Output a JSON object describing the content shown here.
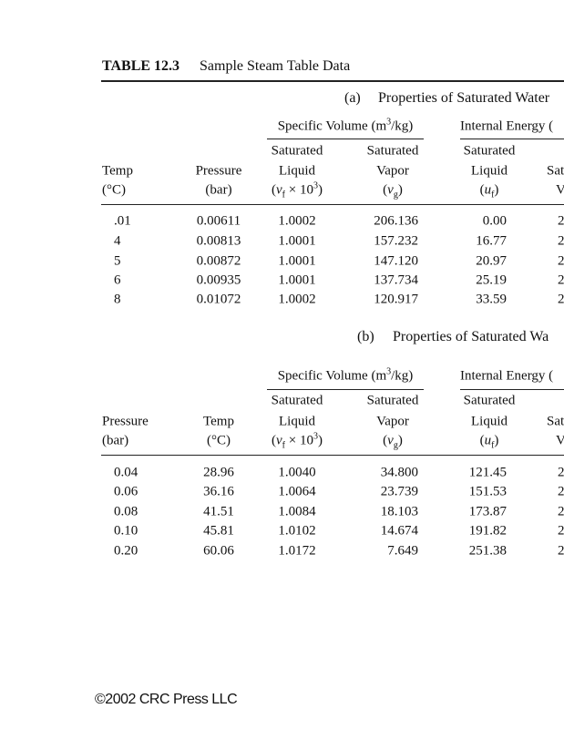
{
  "header": {
    "label": "TABLE 12.3",
    "title": "Sample Steam Table Data"
  },
  "parts": [
    {
      "label": "(a)",
      "title": "Properties of Saturated Water",
      "groups": [
        {
          "text": [
            {
              "text": "Specific Volume (m"
            },
            {
              "text": "3",
              "style": "sup"
            },
            {
              "text": "/kg)"
            }
          ],
          "from": 2,
          "to": 3
        },
        {
          "text": [
            {
              "text": "Internal Energy ("
            }
          ],
          "from": 4,
          "to": 5
        }
      ],
      "columns": [
        [
          "Temp",
          "(°C)"
        ],
        [
          "Pressure",
          "(bar)"
        ],
        [
          "Saturated",
          "Liquid",
          [
            {
              "text": "("
            },
            {
              "text": "v",
              "style": "i"
            },
            {
              "text": "f",
              "style": "sub"
            },
            {
              "text": " × 10"
            },
            {
              "text": "3",
              "style": "sup"
            },
            {
              "text": ")"
            }
          ]
        ],
        [
          "Saturated",
          "Vapor",
          [
            {
              "text": "("
            },
            {
              "text": "v",
              "style": "i"
            },
            {
              "text": "g",
              "style": "sub"
            },
            {
              "text": ")"
            }
          ]
        ],
        [
          "Saturated",
          "Liquid",
          [
            {
              "text": "("
            },
            {
              "text": "u",
              "style": "i"
            },
            {
              "text": "f",
              "style": "sub"
            },
            {
              "text": ")"
            }
          ]
        ],
        [
          "Sat",
          "V"
        ]
      ],
      "rows": [
        [
          ".01",
          "0.00611",
          "1.0002",
          "206.136",
          "0.00",
          "2"
        ],
        [
          "4",
          "0.00813",
          "1.0001",
          "157.232",
          "16.77",
          "2"
        ],
        [
          "5",
          "0.00872",
          "1.0001",
          "147.120",
          "20.97",
          "2"
        ],
        [
          "6",
          "0.00935",
          "1.0001",
          "137.734",
          "25.19",
          "2"
        ],
        [
          "8",
          "0.01072",
          "1.0002",
          "120.917",
          "33.59",
          "2"
        ]
      ]
    },
    {
      "label": "(b)",
      "title": "Properties of Saturated Wa",
      "groups": [
        {
          "text": [
            {
              "text": "Specific Volume (m"
            },
            {
              "text": "3",
              "style": "sup"
            },
            {
              "text": "/kg)"
            }
          ],
          "from": 2,
          "to": 3
        },
        {
          "text": [
            {
              "text": "Internal Energy ("
            }
          ],
          "from": 4,
          "to": 5
        }
      ],
      "columns": [
        [
          "Pressure",
          "(bar)"
        ],
        [
          "Temp",
          "(°C)"
        ],
        [
          "Saturated",
          "Liquid",
          [
            {
              "text": "("
            },
            {
              "text": "v",
              "style": "i"
            },
            {
              "text": "f",
              "style": "sub"
            },
            {
              "text": " × 10"
            },
            {
              "text": "3",
              "style": "sup"
            },
            {
              "text": ")"
            }
          ]
        ],
        [
          "Saturated",
          "Vapor",
          [
            {
              "text": "("
            },
            {
              "text": "v",
              "style": "i"
            },
            {
              "text": "g",
              "style": "sub"
            },
            {
              "text": ")"
            }
          ]
        ],
        [
          "Saturated",
          "Liquid",
          [
            {
              "text": "("
            },
            {
              "text": "u",
              "style": "i"
            },
            {
              "text": "f",
              "style": "sub"
            },
            {
              "text": ")"
            }
          ]
        ],
        [
          "Sat",
          "V"
        ]
      ],
      "rows": [
        [
          "0.04",
          "28.96",
          "1.0040",
          "34.800",
          "121.45",
          "2"
        ],
        [
          "0.06",
          "36.16",
          "1.0064",
          "23.739",
          "151.53",
          "2"
        ],
        [
          "0.08",
          "41.51",
          "1.0084",
          "18.103",
          "173.87",
          "2"
        ],
        [
          "0.10",
          "45.81",
          "1.0102",
          "14.674",
          "191.82",
          "2"
        ],
        [
          "0.20",
          "60.06",
          "1.0172",
          "7.649",
          "251.38",
          "2"
        ]
      ]
    }
  ],
  "footer": "©2002 CRC Press LLC"
}
